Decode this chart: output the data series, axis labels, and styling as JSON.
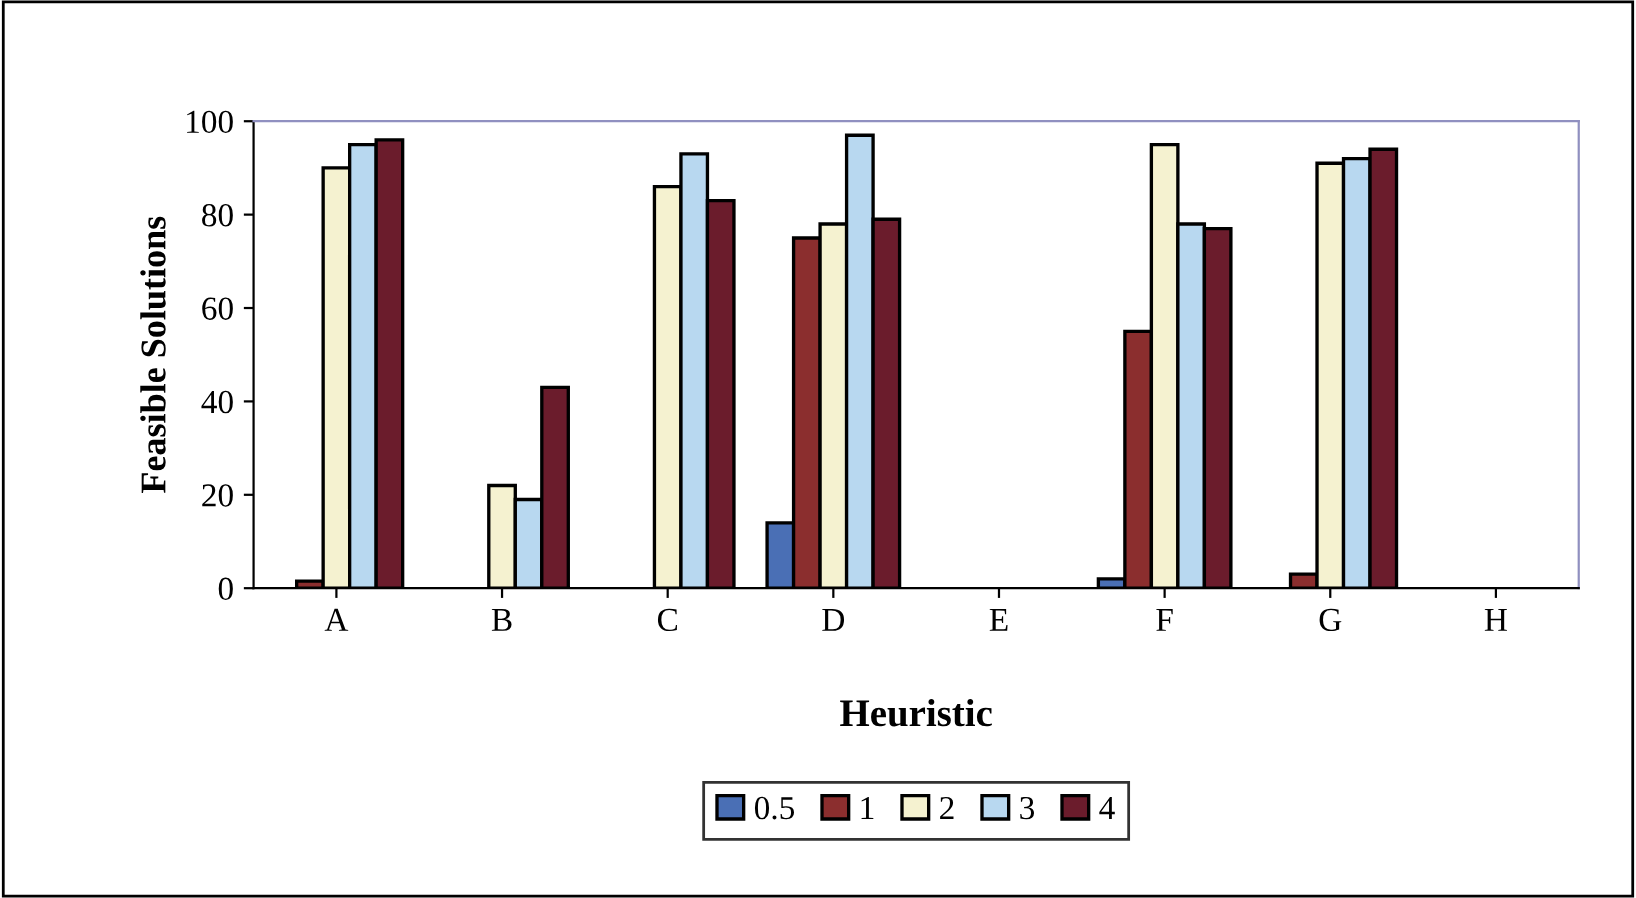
{
  "chart_data": {
    "type": "bar",
    "xlabel": "Heuristic",
    "ylabel": "Feasible Solutions",
    "categories": [
      "A",
      "B",
      "C",
      "D",
      "E",
      "F",
      "G",
      "H"
    ],
    "series": [
      {
        "name": "0.5",
        "color": "#4a6fb5",
        "values": [
          null,
          null,
          null,
          14,
          null,
          2,
          null,
          null
        ]
      },
      {
        "name": "1",
        "color": "#8b2e2e",
        "values": [
          1.5,
          null,
          null,
          75,
          null,
          55,
          3,
          null
        ]
      },
      {
        "name": "2",
        "color": "#f5f2d0",
        "values": [
          90,
          22,
          86,
          78,
          null,
          95,
          91,
          null
        ]
      },
      {
        "name": "3",
        "color": "#b8d8f0",
        "values": [
          95,
          19,
          93,
          97,
          null,
          78,
          92,
          null
        ]
      },
      {
        "name": "4",
        "color": "#6b1c2c",
        "values": [
          96,
          43,
          83,
          79,
          null,
          77,
          94,
          null
        ]
      }
    ],
    "ylim": [
      0,
      100
    ],
    "yticks": [
      0,
      20,
      40,
      60,
      80,
      100
    ],
    "grid": false,
    "legend": "bottom"
  }
}
